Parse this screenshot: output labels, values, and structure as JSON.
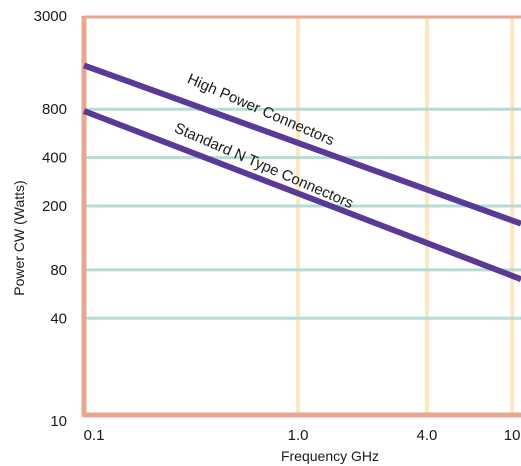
{
  "chart_data": {
    "type": "line",
    "title": "",
    "xlabel": "Frequency GHz",
    "ylabel": "Power CW (Watts)",
    "x_scale": "log",
    "y_scale": "log",
    "xlim": [
      0.1,
      11
    ],
    "ylim": [
      10,
      3000
    ],
    "x_ticks": [
      {
        "value": 0.1,
        "label": "0.1"
      },
      {
        "value": 1.0,
        "label": "1.0"
      },
      {
        "value": 4.0,
        "label": "4.0"
      },
      {
        "value": 10,
        "label": "10"
      }
    ],
    "y_ticks": [
      {
        "value": 3000,
        "label": "3000"
      },
      {
        "value": 800,
        "label": "800"
      },
      {
        "value": 400,
        "label": "400"
      },
      {
        "value": 200,
        "label": "200"
      },
      {
        "value": 80,
        "label": "80"
      },
      {
        "value": 40,
        "label": "40"
      },
      {
        "value": 10,
        "label": "10"
      }
    ],
    "series": [
      {
        "name": "High Power Connectors",
        "color": "#5b3a97",
        "x": [
          0.1,
          11
        ],
        "y": [
          1500,
          155
        ]
      },
      {
        "name": "Standard N Type Connectors",
        "color": "#5b3a97",
        "x": [
          0.1,
          11
        ],
        "y": [
          780,
          70
        ]
      }
    ],
    "colors": {
      "frame": "#e8a78f",
      "x_grid": "#fbe7c2",
      "y_grid": "#b5ddd7"
    },
    "grid": true,
    "legend": "none"
  }
}
